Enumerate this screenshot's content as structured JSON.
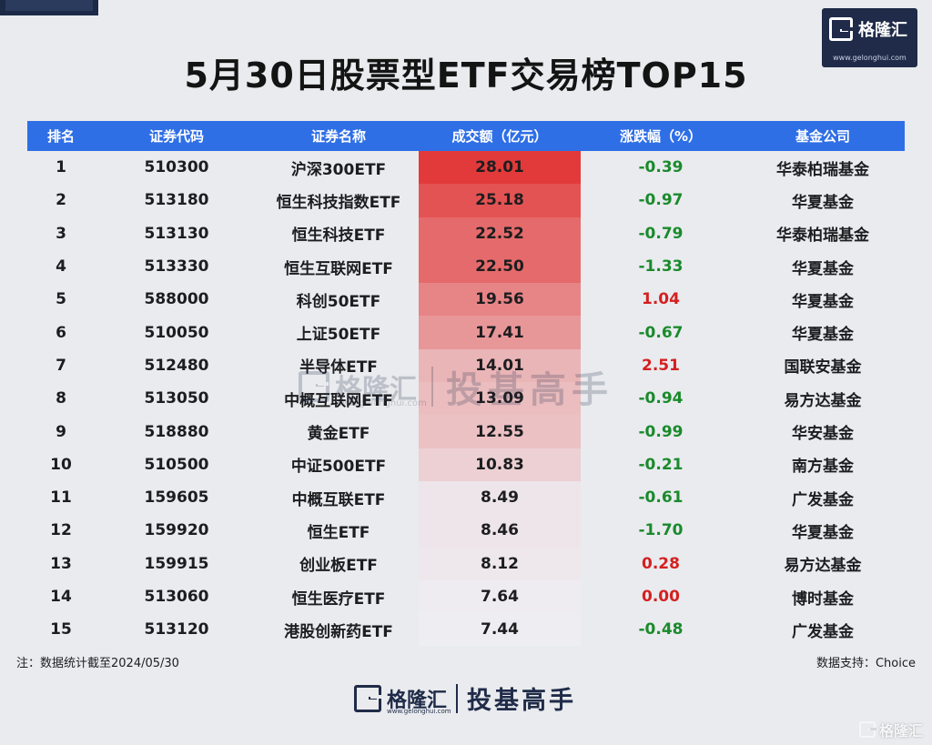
{
  "title": "5月30日股票型ETF交易榜TOP15",
  "brand": {
    "name": "格隆汇",
    "url": "www.gelonghui.com",
    "slogan": "投基高手"
  },
  "columns": [
    "排名",
    "证券代码",
    "证券名称",
    "成交额（亿元）",
    "涨跌幅（%）",
    "基金公司"
  ],
  "rows": [
    {
      "rank": "1",
      "code": "510300",
      "name": "沪深300ETF",
      "amount": "28.01",
      "change": "-0.39",
      "company": "华泰柏瑞基金"
    },
    {
      "rank": "2",
      "code": "513180",
      "name": "恒生科技指数ETF",
      "amount": "25.18",
      "change": "-0.97",
      "company": "华夏基金"
    },
    {
      "rank": "3",
      "code": "513130",
      "name": "恒生科技ETF",
      "amount": "22.52",
      "change": "-0.79",
      "company": "华泰柏瑞基金"
    },
    {
      "rank": "4",
      "code": "513330",
      "name": "恒生互联网ETF",
      "amount": "22.50",
      "change": "-1.33",
      "company": "华夏基金"
    },
    {
      "rank": "5",
      "code": "588000",
      "name": "科创50ETF",
      "amount": "19.56",
      "change": "1.04",
      "company": "华夏基金"
    },
    {
      "rank": "6",
      "code": "510050",
      "name": "上证50ETF",
      "amount": "17.41",
      "change": "-0.67",
      "company": "华夏基金"
    },
    {
      "rank": "7",
      "code": "512480",
      "name": "半导体ETF",
      "amount": "14.01",
      "change": "2.51",
      "company": "国联安基金"
    },
    {
      "rank": "8",
      "code": "513050",
      "name": "中概互联网ETF",
      "amount": "13.09",
      "change": "-0.94",
      "company": "易方达基金"
    },
    {
      "rank": "9",
      "code": "518880",
      "name": "黄金ETF",
      "amount": "12.55",
      "change": "-0.99",
      "company": "华安基金"
    },
    {
      "rank": "10",
      "code": "510500",
      "name": "中证500ETF",
      "amount": "10.83",
      "change": "-0.21",
      "company": "南方基金"
    },
    {
      "rank": "11",
      "code": "159605",
      "name": "中概互联ETF",
      "amount": "8.49",
      "change": "-0.61",
      "company": "广发基金"
    },
    {
      "rank": "12",
      "code": "159920",
      "name": "恒生ETF",
      "amount": "8.46",
      "change": "-1.70",
      "company": "华夏基金"
    },
    {
      "rank": "13",
      "code": "159915",
      "name": "创业板ETF",
      "amount": "8.12",
      "change": "0.28",
      "company": "易方达基金"
    },
    {
      "rank": "14",
      "code": "513060",
      "name": "恒生医疗ETF",
      "amount": "7.64",
      "change": "0.00",
      "company": "博时基金"
    },
    {
      "rank": "15",
      "code": "513120",
      "name": "港股创新药ETF",
      "amount": "7.44",
      "change": "-0.48",
      "company": "广发基金"
    }
  ],
  "note": "注：数据统计截至2024/05/30",
  "source": "数据支持：Choice",
  "colors": {
    "header_bg": "#2f6fe6",
    "heat_max": "#e23a3a",
    "heat_min": "#eeeef2",
    "negative": "#1a8a2c",
    "positive": "#d42020",
    "brand_navy": "#1f2b48"
  }
}
